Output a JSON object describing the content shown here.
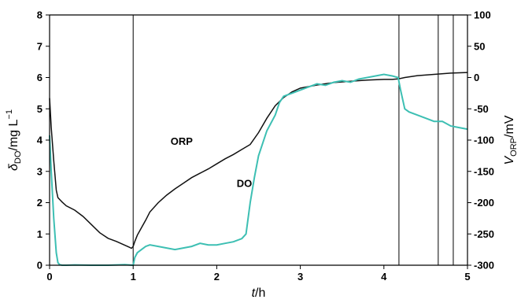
{
  "chart_data": {
    "type": "line",
    "xlabel": {
      "italic": "t",
      "rest": "/h"
    },
    "ylabel_left": {
      "italic": "δ",
      "sub": "DO",
      "rest": "/mg L",
      "sup": "−1"
    },
    "ylabel_right": {
      "italic": "V",
      "sub": "ORP",
      "rest": "/mV"
    },
    "xlim": [
      0,
      5
    ],
    "ylim_left": [
      0,
      8
    ],
    "ylim_right": [
      -300,
      100
    ],
    "x_ticks": [
      "0",
      "1",
      "2",
      "3",
      "4",
      "5"
    ],
    "y_left_ticks": [
      "0",
      "1",
      "2",
      "3",
      "4",
      "5",
      "6",
      "7",
      "8"
    ],
    "y_right_ticks": [
      "-300",
      "-250",
      "-200",
      "-150",
      "-100",
      "-50",
      "0",
      "50",
      "100"
    ],
    "vertical_lines": [
      1.0,
      4.18,
      4.65,
      4.83,
      5.0
    ],
    "grid": false,
    "colors": {
      "ORP": "#111111",
      "DO": "#3dbfb3",
      "axes": "#000000"
    },
    "series": [
      {
        "name": "ORP",
        "axis": "right",
        "x": [
          0.0,
          0.02,
          0.05,
          0.08,
          0.1,
          0.15,
          0.2,
          0.3,
          0.4,
          0.5,
          0.6,
          0.7,
          0.8,
          0.9,
          0.95,
          0.98,
          1.0,
          1.02,
          1.05,
          1.1,
          1.15,
          1.2,
          1.3,
          1.4,
          1.5,
          1.6,
          1.7,
          1.8,
          1.9,
          2.0,
          2.1,
          2.2,
          2.3,
          2.4,
          2.5,
          2.6,
          2.7,
          2.8,
          2.9,
          3.0,
          3.2,
          3.4,
          3.6,
          3.8,
          4.0,
          4.1,
          4.18,
          4.25,
          4.4,
          4.6,
          4.8,
          5.0
        ],
        "y": [
          -33,
          -80,
          -133,
          -180,
          -192,
          -199,
          -205,
          -212,
          -222,
          -235,
          -248,
          -257,
          -262,
          -268,
          -271,
          -273,
          -270,
          -262,
          -252,
          -240,
          -228,
          -215,
          -200,
          -188,
          -178,
          -169,
          -160,
          -153,
          -146,
          -138,
          -130,
          -123,
          -115,
          -107,
          -88,
          -65,
          -45,
          -32,
          -23,
          -17,
          -12,
          -8,
          -6,
          -4,
          -3,
          -3,
          -2,
          0,
          3,
          5,
          7,
          8
        ]
      },
      {
        "name": "DO",
        "axis": "left",
        "x": [
          0.0,
          0.02,
          0.05,
          0.08,
          0.1,
          0.12,
          0.15,
          0.2,
          0.3,
          0.5,
          0.7,
          0.9,
          1.0,
          1.02,
          1.05,
          1.1,
          1.15,
          1.2,
          1.3,
          1.4,
          1.5,
          1.6,
          1.7,
          1.8,
          1.9,
          2.0,
          2.1,
          2.2,
          2.3,
          2.35,
          2.4,
          2.45,
          2.5,
          2.6,
          2.7,
          2.75,
          2.8,
          2.9,
          3.0,
          3.1,
          3.2,
          3.3,
          3.4,
          3.5,
          3.6,
          3.7,
          3.8,
          3.9,
          4.0,
          4.1,
          4.17,
          4.2,
          4.25,
          4.3,
          4.4,
          4.5,
          4.6,
          4.7,
          4.8,
          4.9,
          5.0
        ],
        "y": [
          4.15,
          3.0,
          1.5,
          0.4,
          0.08,
          0.02,
          0.0,
          0.0,
          0.01,
          0.0,
          0.0,
          0.02,
          0.0,
          0.25,
          0.4,
          0.5,
          0.6,
          0.65,
          0.6,
          0.55,
          0.5,
          0.55,
          0.6,
          0.7,
          0.65,
          0.65,
          0.7,
          0.75,
          0.85,
          1.0,
          2.0,
          2.8,
          3.5,
          4.3,
          4.8,
          5.2,
          5.4,
          5.5,
          5.6,
          5.7,
          5.8,
          5.75,
          5.85,
          5.9,
          5.85,
          5.95,
          6.0,
          6.05,
          6.1,
          6.05,
          6.0,
          5.6,
          5.0,
          4.9,
          4.8,
          4.7,
          4.6,
          4.6,
          4.45,
          4.4,
          4.35
        ]
      }
    ],
    "annotations": [
      {
        "text": "ORP",
        "x": 1.58,
        "y_left": 3.85
      },
      {
        "text": "DO",
        "x": 2.33,
        "y_left": 2.5
      }
    ]
  }
}
